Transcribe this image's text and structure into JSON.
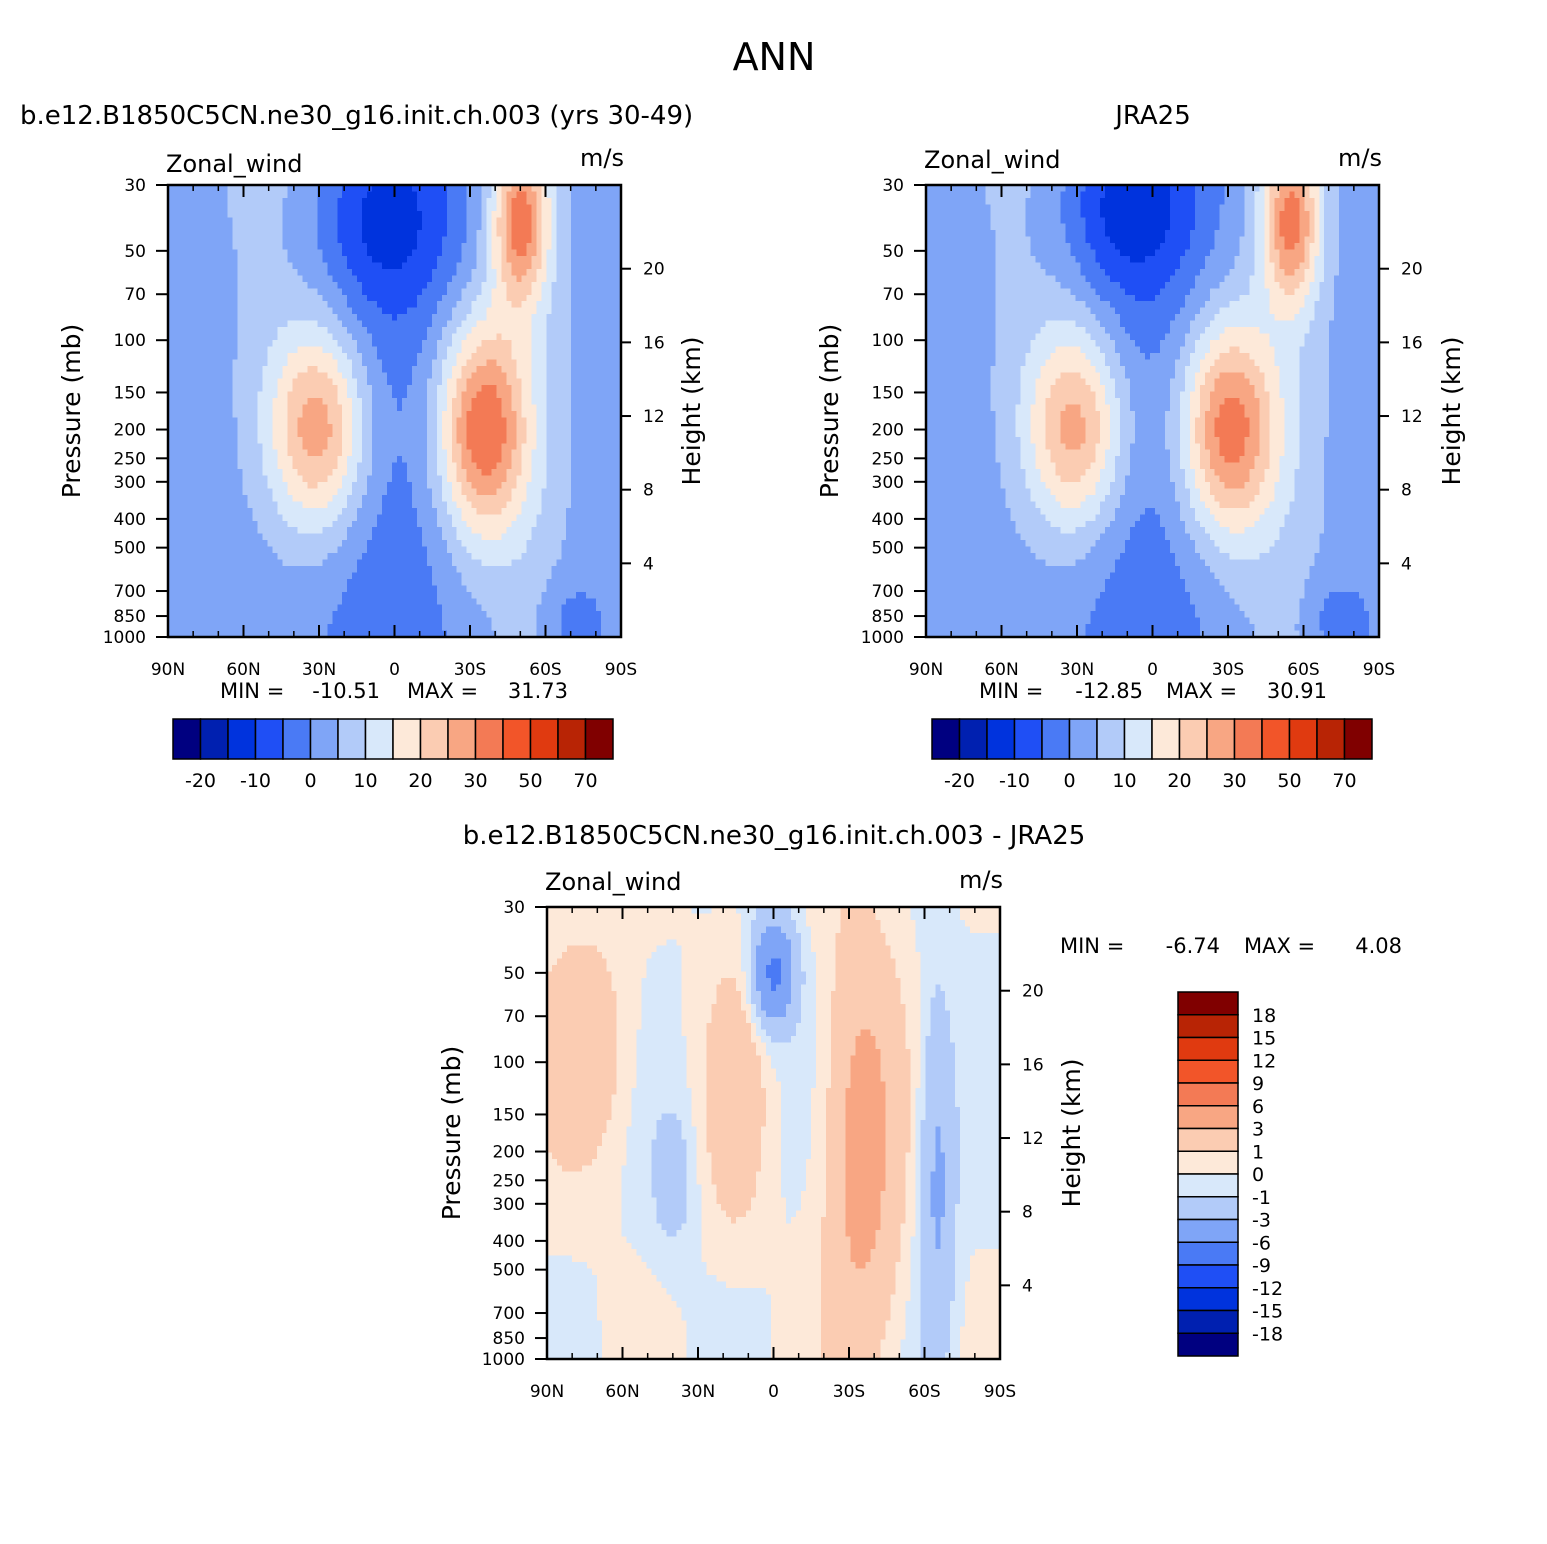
{
  "figure_title": "ANN",
  "colors": {
    "full_palette": [
      "#000080",
      "#0020b0",
      "#0033dd",
      "#1f4ff5",
      "#4a7af5",
      "#7fa5f7",
      "#b2cbf9",
      "#d8e8fa",
      "#fde9d9",
      "#fbccb2",
      "#f8a683",
      "#f37a55",
      "#f25529",
      "#e03a10",
      "#b82405",
      "#800000"
    ],
    "diff_palette": [
      "#000080",
      "#0020b0",
      "#0033dd",
      "#1f4ff5",
      "#4a7af5",
      "#7fa5f7",
      "#b2cbf9",
      "#d8e8fa",
      "#fde9d9",
      "#fbccb2",
      "#f8a683",
      "#f37a55",
      "#f25529",
      "#e03a10",
      "#b82405",
      "#800000"
    ]
  },
  "chart_data": [
    {
      "type": "contour",
      "id": "model",
      "title": "b.e12.B1850C5CN.ne30_g16.init.ch.003 (yrs 30-49)",
      "left_label": "Zonal_wind",
      "right_label": "m/s",
      "xlabel": "",
      "ylabel": "Pressure (mb)",
      "ylabel_right": "Height (km)",
      "x_ticks": [
        "90N",
        "60N",
        "30N",
        "0",
        "30S",
        "60S",
        "90S"
      ],
      "xlim": [
        90,
        -90
      ],
      "y_ticks": [
        30,
        50,
        70,
        100,
        150,
        200,
        250,
        300,
        400,
        500,
        700,
        850,
        1000
      ],
      "ylim": [
        1000,
        30
      ],
      "height_ticks": [
        4,
        8,
        12,
        16,
        20
      ],
      "min_label": "MIN =",
      "min": "-10.51",
      "max_label": "MAX =",
      "max": "31.73",
      "colorbar_labels": [
        "-20",
        "-10",
        "0",
        "10",
        "20",
        "30",
        "50",
        "70"
      ],
      "features": [
        {
          "lat": 30,
          "p": 200,
          "value": 25,
          "sx": 14,
          "sy": 0.55
        },
        {
          "lat": -35,
          "p": 200,
          "value": 31.73,
          "sx": 13,
          "sy": 0.6
        },
        {
          "lat": -50,
          "p": 40,
          "value": 28,
          "sx": 8,
          "sy": 0.45
        },
        {
          "lat": 5,
          "p": 40,
          "value": -10.51,
          "sx": 22,
          "sy": 0.5
        },
        {
          "lat": -70,
          "p": 900,
          "value": -6,
          "sx": 8,
          "sy": 0.25
        }
      ]
    },
    {
      "type": "contour",
      "id": "obs",
      "title": "JRA25",
      "left_label": "Zonal_wind",
      "right_label": "m/s",
      "xlabel": "",
      "ylabel": "Pressure (mb)",
      "ylabel_right": "Height (km)",
      "x_ticks": [
        "90N",
        "60N",
        "30N",
        "0",
        "30S",
        "60S",
        "90S"
      ],
      "xlim": [
        90,
        -90
      ],
      "y_ticks": [
        30,
        50,
        70,
        100,
        150,
        200,
        250,
        300,
        400,
        500,
        700,
        850,
        1000
      ],
      "ylim": [
        1000,
        30
      ],
      "height_ticks": [
        4,
        8,
        12,
        16,
        20
      ],
      "min_label": "MIN =",
      "min": "-12.85",
      "max_label": "MAX =",
      "max": "30.91",
      "colorbar_labels": [
        "-20",
        "-10",
        "0",
        "10",
        "20",
        "30",
        "50",
        "70"
      ],
      "features": [
        {
          "lat": 30,
          "p": 200,
          "value": 24,
          "sx": 14,
          "sy": 0.55
        },
        {
          "lat": -30,
          "p": 200,
          "value": 30.91,
          "sx": 14,
          "sy": 0.6
        },
        {
          "lat": -55,
          "p": 40,
          "value": 27,
          "sx": 8,
          "sy": 0.45
        },
        {
          "lat": 12,
          "p": 35,
          "value": -12.85,
          "sx": 20,
          "sy": 0.5
        },
        {
          "lat": -72,
          "p": 900,
          "value": -6,
          "sx": 8,
          "sy": 0.25
        }
      ]
    },
    {
      "type": "contour",
      "id": "diff",
      "title": "b.e12.B1850C5CN.ne30_g16.init.ch.003 - JRA25",
      "left_label": "Zonal_wind",
      "right_label": "m/s",
      "xlabel": "",
      "ylabel": "Pressure (mb)",
      "ylabel_right": "Height (km)",
      "x_ticks": [
        "90N",
        "60N",
        "30N",
        "0",
        "30S",
        "60S",
        "90S"
      ],
      "xlim": [
        90,
        -90
      ],
      "y_ticks": [
        30,
        50,
        70,
        100,
        150,
        200,
        250,
        300,
        400,
        500,
        700,
        850,
        1000
      ],
      "ylim": [
        1000,
        30
      ],
      "height_ticks": [
        4,
        8,
        12,
        16,
        20
      ],
      "min_label": "MIN =",
      "min": "-6.74",
      "max_label": "MAX =",
      "max": "4.08",
      "colorbar_labels": [
        "18",
        "15",
        "12",
        "9",
        "6",
        "3",
        "1",
        "0",
        "-1",
        "-3",
        "-6",
        "-9",
        "-12",
        "-15",
        "-18"
      ],
      "features": [
        {
          "lat": 0,
          "p": 50,
          "value": -6.74,
          "sx": 6,
          "sy": 0.3
        },
        {
          "lat": -35,
          "p": 200,
          "value": 4.08,
          "sx": 10,
          "sy": 1.2
        },
        {
          "lat": 75,
          "p": 90,
          "value": 2.5,
          "sx": 12,
          "sy": 0.6
        },
        {
          "lat": -65,
          "p": 250,
          "value": -3.5,
          "sx": 5,
          "sy": 1.0
        },
        {
          "lat": 40,
          "p": 250,
          "value": -1.8,
          "sx": 6,
          "sy": 0.4
        },
        {
          "lat": 15,
          "p": 130,
          "value": 2.2,
          "sx": 8,
          "sy": 0.7
        }
      ]
    }
  ]
}
